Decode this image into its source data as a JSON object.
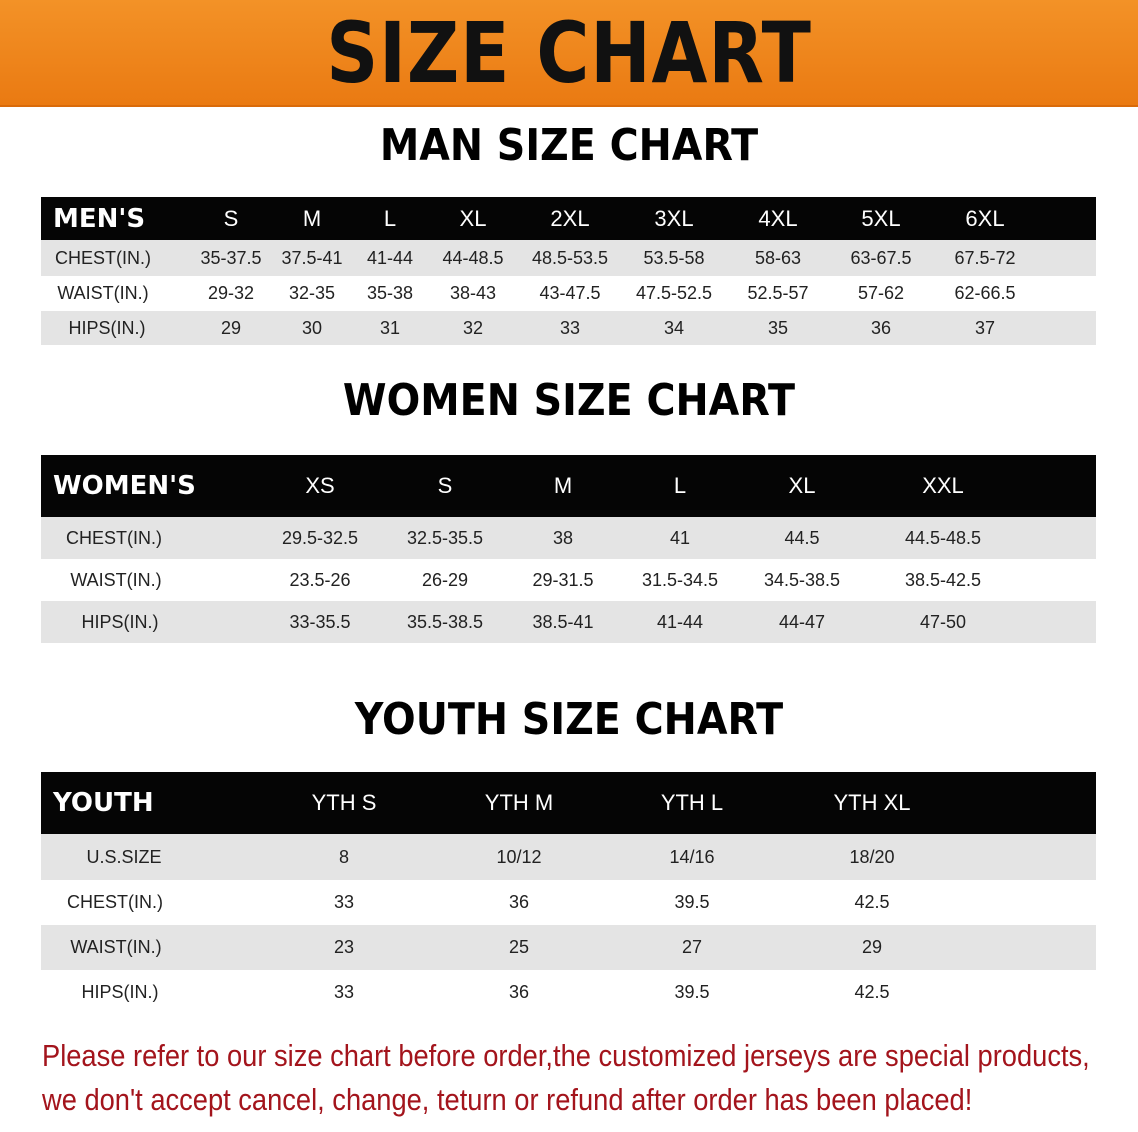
{
  "banner": {
    "title": "SIZE CHART",
    "color": "#ef861c"
  },
  "men": {
    "title": "MAN SIZE CHART",
    "header": [
      "MEN'S",
      "S",
      "M",
      "L",
      "XL",
      "2XL",
      "3XL",
      "4XL",
      "5XL",
      "6XL"
    ],
    "rows": [
      [
        "CHEST(IN.)",
        "35-37.5",
        "37.5-41",
        "41-44",
        "44-48.5",
        "48.5-53.5",
        "53.5-58",
        "58-63",
        "63-67.5",
        "67.5-72"
      ],
      [
        "WAIST(IN.)",
        "29-32",
        "32-35",
        "35-38",
        "38-43",
        "43-47.5",
        "47.5-52.5",
        "52.5-57",
        "57-62",
        "62-66.5"
      ],
      [
        "HIPS(IN.)",
        "29",
        "30",
        "31",
        "32",
        "33",
        "34",
        "35",
        "36",
        "37"
      ]
    ]
  },
  "women": {
    "title": "WOMEN SIZE CHART",
    "header": [
      "WOMEN'S",
      "XS",
      "S",
      "M",
      "L",
      "XL",
      "XXL"
    ],
    "rows": [
      [
        "CHEST(IN.)",
        "29.5-32.5",
        "32.5-35.5",
        "38",
        "41",
        "44.5",
        "44.5-48.5"
      ],
      [
        "WAIST(IN.)",
        "23.5-26",
        "26-29",
        "29-31.5",
        "31.5-34.5",
        "34.5-38.5",
        "38.5-42.5"
      ],
      [
        "HIPS(IN.)",
        "33-35.5",
        "35.5-38.5",
        "38.5-41",
        "41-44",
        "44-47",
        "47-50"
      ]
    ]
  },
  "youth": {
    "title": "YOUTH SIZE CHART",
    "header": [
      "YOUTH",
      "YTH S",
      "YTH M",
      "YTH L",
      "YTH XL"
    ],
    "rows": [
      [
        "U.S.SIZE",
        "8",
        "10/12",
        "14/16",
        "18/20"
      ],
      [
        "CHEST(IN.)",
        "33",
        "36",
        "39.5",
        "42.5"
      ],
      [
        "WAIST(IN.)",
        "23",
        "25",
        "27",
        "29"
      ],
      [
        "HIPS(IN.)",
        "33",
        "36",
        "39.5",
        "42.5"
      ]
    ]
  },
  "note": {
    "line1": "Please refer to our size chart before order,the customized jerseys are special products,",
    "line2": "we don't accept cancel, change, teturn or refund after order has been placed!",
    "color": "#a3141c"
  }
}
